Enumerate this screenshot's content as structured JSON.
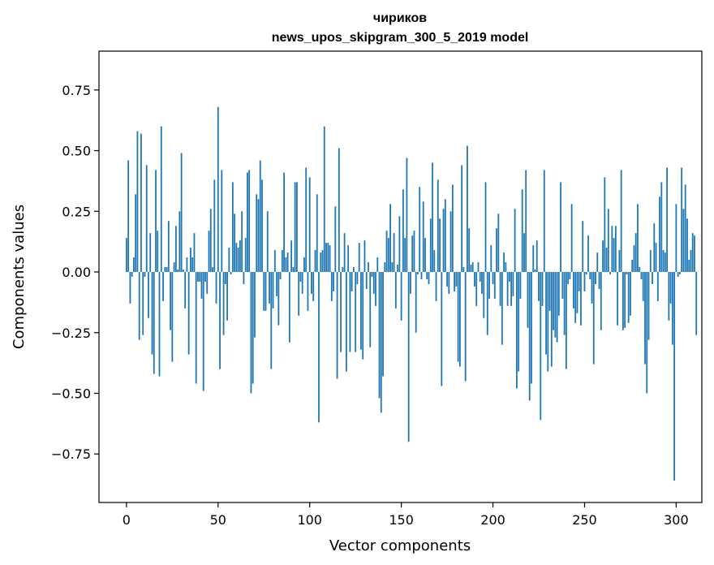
{
  "chart_data": {
    "type": "bar",
    "title": "чириков",
    "subtitle": "news_upos_skipgram_300_5_2019 model",
    "xlabel": "Vector components",
    "ylabel": "Components values",
    "xlim": [
      -15,
      314
    ],
    "ylim": [
      -0.95,
      0.91
    ],
    "xticks": [
      0,
      50,
      100,
      150,
      200,
      250,
      300
    ],
    "yticks": [
      -0.75,
      -0.5,
      -0.25,
      0.0,
      0.25,
      0.5,
      0.75
    ],
    "xtick_labels": [
      "0",
      "50",
      "100",
      "150",
      "200",
      "250",
      "300"
    ],
    "ytick_labels": [
      "−0.75",
      "−0.50",
      "−0.25",
      "0.00",
      "0.25",
      "0.50",
      "0.75"
    ],
    "grid": false,
    "bar_color": "#1f77b4",
    "values": [
      0.14,
      0.46,
      -0.13,
      -0.02,
      0.06,
      0.32,
      0.58,
      -0.28,
      0.57,
      -0.26,
      -0.02,
      0.44,
      -0.19,
      0.16,
      -0.34,
      -0.42,
      0.42,
      0.17,
      -0.43,
      0.6,
      -0.12,
      0.02,
      0.02,
      0.21,
      -0.24,
      -0.37,
      0.04,
      0.19,
      0.01,
      0.25,
      0.49,
      0.01,
      -0.15,
      0.06,
      -0.34,
      0.1,
      0.06,
      0.16,
      -0.46,
      -0.04,
      -0.04,
      -0.11,
      -0.49,
      -0.04,
      -0.09,
      0.17,
      0.26,
      0.02,
      0.38,
      -0.13,
      0.68,
      -0.4,
      0.42,
      -0.26,
      -0.05,
      -0.2,
      0.1,
      -0.01,
      0.37,
      0.24,
      0.12,
      0.1,
      0.13,
      0.25,
      -0.05,
      0.14,
      0.41,
      0.42,
      -0.5,
      -0.46,
      -0.27,
      0.32,
      0.3,
      0.46,
      0.38,
      -0.16,
      -0.16,
      0.25,
      -0.13,
      -0.4,
      -0.15,
      0.09,
      -0.1,
      -0.22,
      -0.03,
      0.09,
      0.41,
      0.06,
      0.08,
      -0.29,
      0.13,
      0.02,
      0.37,
      0.37,
      -0.18,
      -0.04,
      -0.09,
      0.06,
      0.43,
      -0.16,
      0.39,
      -0.09,
      -0.12,
      0.09,
      0.32,
      -0.62,
      0.08,
      0.09,
      0.6,
      0.12,
      0.12,
      0.11,
      -0.12,
      -0.08,
      0.27,
      -0.44,
      0.51,
      -0.33,
      0.02,
      0.16,
      -0.41,
      0.11,
      -0.33,
      -0.08,
      0.02,
      -0.33,
      -0.05,
      0.12,
      -0.32,
      -0.36,
      0.13,
      -0.07,
      0.04,
      -0.31,
      -0.02,
      -0.09,
      -0.14,
      0.06,
      -0.52,
      -0.58,
      -0.43,
      0.04,
      0.17,
      0.14,
      0.28,
      0.04,
      0.16,
      -0.15,
      0.03,
      0.23,
      -0.2,
      0.34,
      0.14,
      0.47,
      -0.7,
      -0.09,
      0.15,
      0.17,
      -0.25,
      -0.01,
      0.35,
      -0.03,
      0.29,
      0.14,
      -0.03,
      -0.05,
      0.22,
      0.45,
      0.09,
      -0.12,
      0.38,
      0.22,
      -0.47,
      0.26,
      0.3,
      -0.06,
      -0.09,
      0.25,
      0.36,
      -0.08,
      -0.06,
      -0.37,
      -0.39,
      0.44,
      0.02,
      -0.45,
      0.52,
      0.18,
      0.03,
      0.04,
      -0.06,
      -0.14,
      0.04,
      -0.04,
      -0.09,
      -0.19,
      0.37,
      -0.26,
      -0.11,
      0.11,
      -0.05,
      -0.11,
      0.18,
      0.24,
      -0.14,
      -0.3,
      0.08,
      0.04,
      -0.14,
      -0.04,
      -0.14,
      -0.1,
      0.26,
      -0.48,
      -0.41,
      -0.11,
      0.34,
      0.16,
      0.42,
      -0.23,
      -0.53,
      -0.46,
      0.11,
      0.01,
      0.13,
      -0.12,
      -0.61,
      -0.14,
      0.42,
      -0.34,
      -0.41,
      -0.16,
      -0.39,
      -0.24,
      -0.27,
      -0.29,
      -0.18,
      0.37,
      -0.11,
      -0.26,
      -0.4,
      -0.05,
      -0.03,
      0.28,
      -0.15,
      -0.21,
      -0.17,
      -0.08,
      -0.22,
      0.21,
      -0.08,
      -0.01,
      0.15,
      -0.03,
      -0.13,
      -0.38,
      -0.05,
      0.08,
      -0.07,
      -0.24,
      0.13,
      0.39,
      0.1,
      0.26,
      -0.01,
      0.19,
      0.14,
      0.19,
      -0.22,
      0.09,
      0.42,
      -0.24,
      -0.23,
      -0.01,
      -0.21,
      -0.18,
      0.05,
      0.11,
      0.16,
      0.28,
      0.02,
      -0.03,
      -0.12,
      -0.38,
      -0.5,
      -0.28,
      0.09,
      -0.05,
      0.2,
      0.12,
      -0.12,
      0.31,
      0.37,
      0.09,
      0.08,
      0.43,
      -0.2,
      -0.13,
      -0.3,
      -0.86,
      0.28,
      -0.02,
      -0.01,
      0.43,
      0.26,
      0.36,
      0.22,
      0.05,
      0.09,
      0.16,
      0.15,
      -0.26
    ]
  }
}
